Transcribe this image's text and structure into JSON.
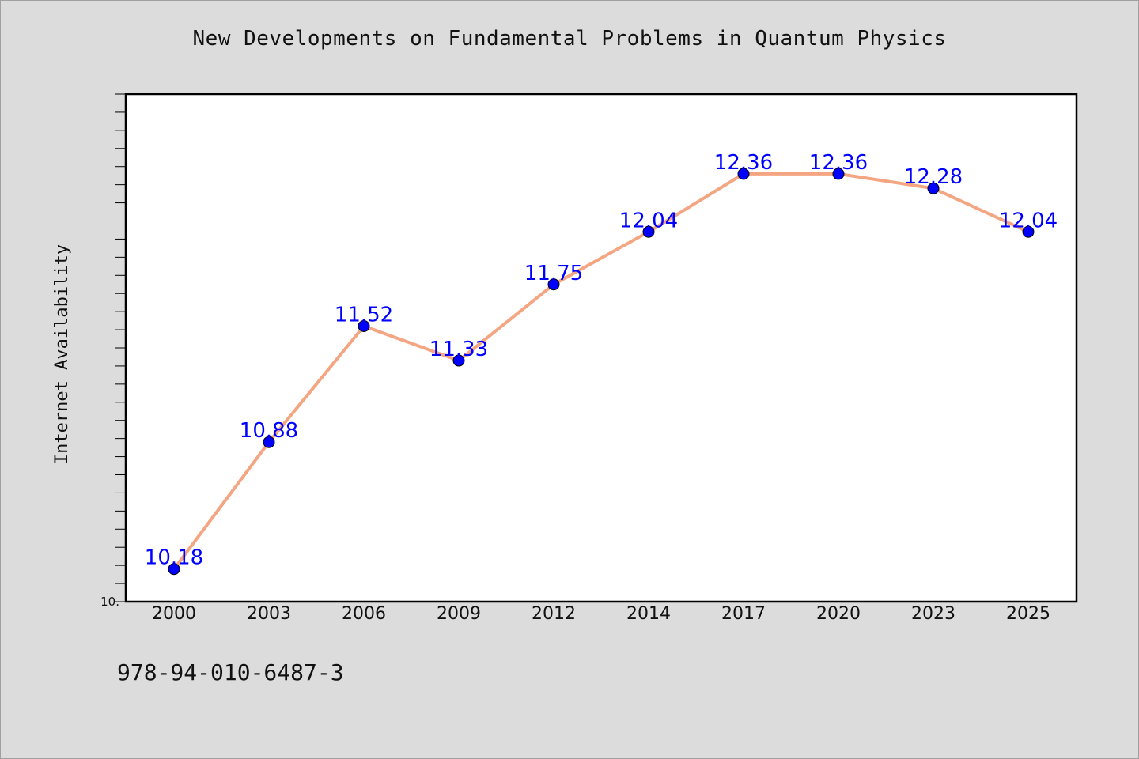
{
  "title": "New Developments on Fundamental Problems in Quantum Physics",
  "footer": "978-94-010-6487-3",
  "colors": {
    "line": "#f4a582",
    "marker": "#0000ff",
    "label": "#0000ff",
    "background": "#dcdcdc",
    "plot_bg": "#ffffff"
  },
  "chart_data": {
    "type": "line",
    "title": "New Developments on Fundamental Problems in Quantum Physics",
    "xlabel": "",
    "ylabel": "Internet Availability",
    "categories": [
      "2000",
      "2003",
      "2006",
      "2009",
      "2012",
      "2014",
      "2017",
      "2020",
      "2023",
      "2025"
    ],
    "series": [
      {
        "values": [
          10.18,
          10.88,
          11.52,
          11.33,
          11.75,
          12.04,
          12.36,
          12.36,
          12.28,
          12.04
        ]
      }
    ],
    "ylim": [
      10.0,
      12.8
    ],
    "ytick_labels": [
      {
        "value": 10.0,
        "label": "10."
      }
    ],
    "grid": false,
    "legend": "none"
  }
}
